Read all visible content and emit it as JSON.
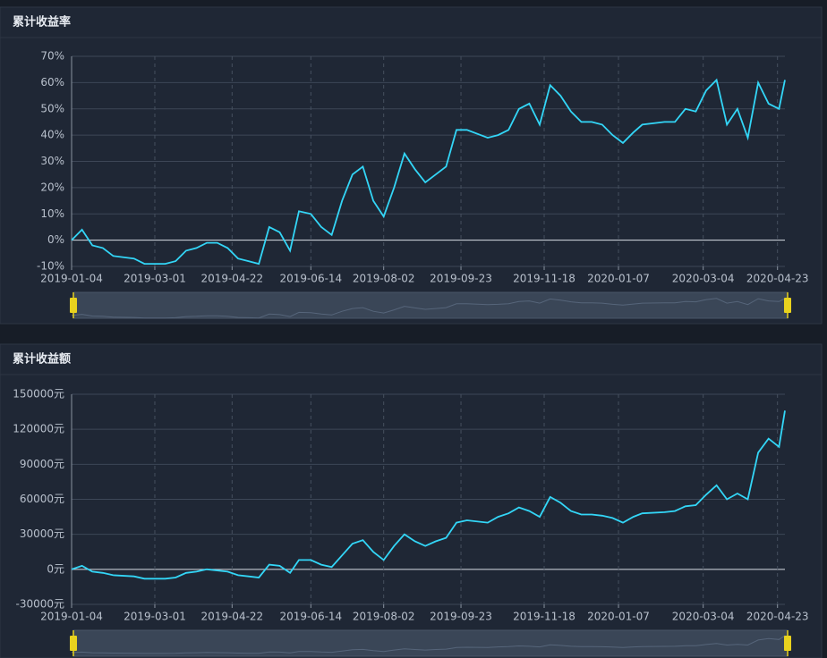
{
  "chart_data": [
    {
      "type": "line",
      "title": "累计收益率",
      "color": "#33d6f7",
      "x": [
        "2019-01-04",
        "2019-01-11",
        "2019-01-18",
        "2019-01-25",
        "2019-02-01",
        "2019-02-15",
        "2019-02-22",
        "2019-03-01",
        "2019-03-08",
        "2019-03-15",
        "2019-03-22",
        "2019-03-29",
        "2019-04-05",
        "2019-04-12",
        "2019-04-19",
        "2019-04-26",
        "2019-05-03",
        "2019-05-10",
        "2019-05-17",
        "2019-05-24",
        "2019-05-31",
        "2019-06-06",
        "2019-06-14",
        "2019-06-21",
        "2019-06-28",
        "2019-07-05",
        "2019-07-12",
        "2019-07-19",
        "2019-07-26",
        "2019-08-02",
        "2019-08-09",
        "2019-08-16",
        "2019-08-23",
        "2019-08-30",
        "2019-09-06",
        "2019-09-13",
        "2019-09-20",
        "2019-09-27",
        "2019-10-11",
        "2019-10-18",
        "2019-10-25",
        "2019-11-01",
        "2019-11-08",
        "2019-11-15",
        "2019-11-22",
        "2019-11-29",
        "2019-12-06",
        "2019-12-13",
        "2019-12-20",
        "2019-12-27",
        "2020-01-03",
        "2020-01-10",
        "2020-01-17",
        "2020-01-23",
        "2020-02-07",
        "2020-02-14",
        "2020-02-21",
        "2020-02-28",
        "2020-03-06",
        "2020-03-13",
        "2020-03-20",
        "2020-03-27",
        "2020-04-03",
        "2020-04-10",
        "2020-04-17",
        "2020-04-24",
        "2020-04-28"
      ],
      "values": [
        0,
        4,
        -2,
        -3,
        -6,
        -7,
        -9,
        -9,
        -9,
        -8,
        -4,
        -3,
        -1,
        -1,
        -3,
        -7,
        -8,
        -9,
        5,
        3,
        -4,
        11,
        10,
        5,
        2,
        15,
        25,
        28,
        15,
        9,
        20,
        33,
        27,
        22,
        25,
        28,
        42,
        42,
        39,
        40,
        42,
        50,
        52,
        44,
        59,
        55,
        49,
        45,
        45,
        44,
        40,
        37,
        41,
        44,
        45,
        45,
        50,
        49,
        57,
        61,
        44,
        50,
        39,
        60,
        52,
        50,
        61
      ],
      "xlim": [
        "2019-01-04",
        "2020-04-28"
      ],
      "xticks": [
        "2019-01-04",
        "2019-03-01",
        "2019-04-22",
        "2019-06-14",
        "2019-08-02",
        "2019-09-23",
        "2019-11-18",
        "2020-01-07",
        "2020-03-04",
        "2020-04-23"
      ],
      "ylim": [
        -10,
        70
      ],
      "yticks": [
        {
          "value": -10,
          "label": "-10%"
        },
        {
          "value": 0,
          "label": "0%"
        },
        {
          "value": 10,
          "label": "10%"
        },
        {
          "value": 20,
          "label": "20%"
        },
        {
          "value": 30,
          "label": "30%"
        },
        {
          "value": 40,
          "label": "40%"
        },
        {
          "value": 50,
          "label": "50%"
        },
        {
          "value": 60,
          "label": "60%"
        },
        {
          "value": 70,
          "label": "70%"
        }
      ],
      "grid": true
    },
    {
      "type": "line",
      "title": "累计收益额",
      "color": "#33d6f7",
      "x": [
        "2019-01-04",
        "2019-01-11",
        "2019-01-18",
        "2019-01-25",
        "2019-02-01",
        "2019-02-15",
        "2019-02-22",
        "2019-03-01",
        "2019-03-08",
        "2019-03-15",
        "2019-03-22",
        "2019-03-29",
        "2019-04-05",
        "2019-04-12",
        "2019-04-19",
        "2019-04-26",
        "2019-05-03",
        "2019-05-10",
        "2019-05-17",
        "2019-05-24",
        "2019-05-31",
        "2019-06-06",
        "2019-06-14",
        "2019-06-21",
        "2019-06-28",
        "2019-07-05",
        "2019-07-12",
        "2019-07-19",
        "2019-07-26",
        "2019-08-02",
        "2019-08-09",
        "2019-08-16",
        "2019-08-23",
        "2019-08-30",
        "2019-09-06",
        "2019-09-13",
        "2019-09-20",
        "2019-09-27",
        "2019-10-11",
        "2019-10-18",
        "2019-10-25",
        "2019-11-01",
        "2019-11-08",
        "2019-11-15",
        "2019-11-22",
        "2019-11-29",
        "2019-12-06",
        "2019-12-13",
        "2019-12-20",
        "2019-12-27",
        "2020-01-03",
        "2020-01-10",
        "2020-01-17",
        "2020-01-23",
        "2020-02-07",
        "2020-02-14",
        "2020-02-21",
        "2020-02-28",
        "2020-03-06",
        "2020-03-13",
        "2020-03-20",
        "2020-03-27",
        "2020-04-03",
        "2020-04-10",
        "2020-04-17",
        "2020-04-24",
        "2020-04-28"
      ],
      "values": [
        0,
        3000,
        -2000,
        -3000,
        -5000,
        -6000,
        -8000,
        -8000,
        -8000,
        -7000,
        -3000,
        -2000,
        0,
        -1000,
        -2000,
        -5000,
        -6000,
        -7000,
        4000,
        3000,
        -3000,
        8000,
        8000,
        4000,
        2000,
        12000,
        22000,
        25000,
        15000,
        8000,
        20000,
        30000,
        24000,
        20000,
        24000,
        27000,
        40000,
        42000,
        40000,
        45000,
        48000,
        53000,
        50000,
        45000,
        62000,
        57000,
        50000,
        47000,
        47000,
        46000,
        44000,
        40000,
        45000,
        48000,
        49000,
        50000,
        54000,
        55000,
        64000,
        72000,
        60000,
        65000,
        60000,
        100000,
        112000,
        105000,
        136000
      ],
      "xlim": [
        "2019-01-04",
        "2020-04-28"
      ],
      "xticks": [
        "2019-01-04",
        "2019-03-01",
        "2019-04-22",
        "2019-06-14",
        "2019-08-02",
        "2019-09-23",
        "2019-11-18",
        "2020-01-07",
        "2020-03-04",
        "2020-04-23"
      ],
      "ylim": [
        -30000,
        150000
      ],
      "yticks": [
        {
          "value": -30000,
          "label": "-30000元"
        },
        {
          "value": 0,
          "label": "0元"
        },
        {
          "value": 30000,
          "label": "30000元"
        },
        {
          "value": 60000,
          "label": "60000元"
        },
        {
          "value": 90000,
          "label": "90000元"
        },
        {
          "value": 120000,
          "label": "120000元"
        },
        {
          "value": 150000,
          "label": "150000元"
        }
      ],
      "grid": true
    }
  ]
}
